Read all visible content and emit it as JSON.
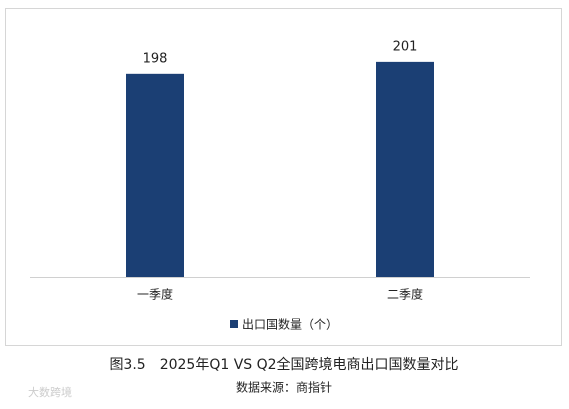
{
  "chart_data": {
    "type": "bar",
    "categories": [
      "一季度",
      "二季度"
    ],
    "series": [
      {
        "name": "出口国数量（个）",
        "color": "#1b3f74",
        "values": [
          198,
          201
        ]
      }
    ],
    "ylim": [
      147,
      209
    ],
    "data_labels": true,
    "legend": "bottom",
    "caption": "图3.5　2025年Q1 VS Q2全国跨境电商出口国数量对比",
    "source": "数据来源：商指针",
    "watermark": "大数跨境"
  }
}
